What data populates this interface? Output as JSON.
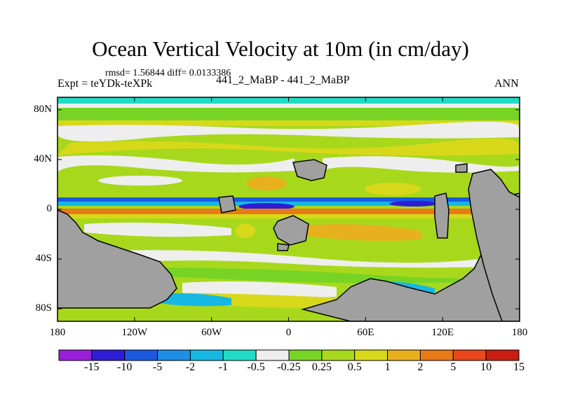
{
  "title": "Ocean Vertical Velocity at 10m (in cm/day)",
  "stats": "rmsd= 1.56844  diff= 0.0133386",
  "expt": "Expt = teYDk-teXPk",
  "runs": "441_2_MaBP - 441_2_MaBP",
  "season": "ANN",
  "y_axis": {
    "labels": [
      "80N",
      "40N",
      "0",
      "40S",
      "80S"
    ],
    "values": [
      80,
      40,
      0,
      -40,
      -80
    ],
    "range": [
      -90,
      90
    ]
  },
  "x_axis": {
    "labels": [
      "180",
      "120W",
      "60W",
      "0",
      "60E",
      "120E",
      "180"
    ],
    "values": [
      -180,
      -120,
      -60,
      0,
      60,
      120,
      180
    ],
    "range": [
      -180,
      180
    ]
  },
  "colorbar": {
    "levels": [
      "-15",
      "-10",
      "-5",
      "-2",
      "-1",
      "-0.5",
      "-0.25",
      "0.25",
      "0.5",
      "1",
      "2",
      "5",
      "10",
      "15"
    ],
    "colors": [
      "#9b1fd9",
      "#2d1dd6",
      "#1a5ae0",
      "#1d8fe6",
      "#16b8e3",
      "#20dcc7",
      "#eeeeee",
      "#78d424",
      "#a8d81c",
      "#d8d81a",
      "#e8b01c",
      "#e87a18",
      "#e8481c",
      "#c81e14"
    ]
  },
  "land_color": "#a0a0a0"
}
